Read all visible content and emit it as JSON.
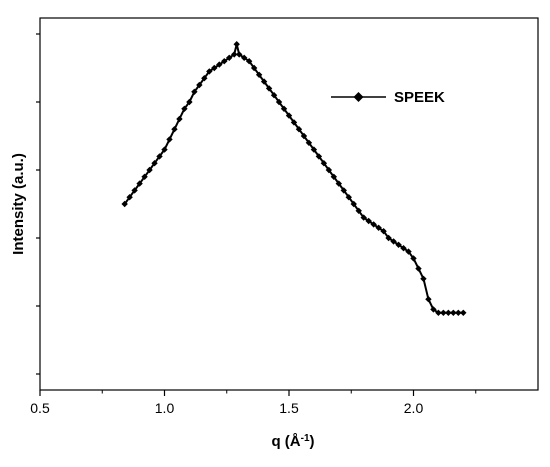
{
  "chart_data": {
    "type": "scatter",
    "xlabel": "q (Å",
    "xlabel_superscript": "-1",
    "xlabel_suffix": ")",
    "ylabel": "Intensity (a.u.)",
    "xlim": [
      0.5,
      2.5
    ],
    "ylim": [
      0,
      1
    ],
    "x_ticks": [
      0.5,
      1.0,
      1.5,
      2.0
    ],
    "x_tick_labels": [
      "0.5",
      "1.0",
      "1.5",
      "2.0"
    ],
    "y_ticks": [
      0.0,
      0.2,
      0.4,
      0.6,
      0.8,
      1.0
    ],
    "grid": false,
    "legend_position": "top-right",
    "series": [
      {
        "name": "SPEEK",
        "color": "#000000",
        "marker": "diamond",
        "x": [
          0.84,
          0.86,
          0.88,
          0.9,
          0.92,
          0.94,
          0.96,
          0.98,
          1.0,
          1.02,
          1.04,
          1.06,
          1.08,
          1.1,
          1.12,
          1.14,
          1.16,
          1.18,
          1.2,
          1.22,
          1.24,
          1.26,
          1.28,
          1.29,
          1.3,
          1.32,
          1.34,
          1.36,
          1.38,
          1.4,
          1.42,
          1.44,
          1.46,
          1.48,
          1.5,
          1.52,
          1.54,
          1.56,
          1.58,
          1.6,
          1.62,
          1.64,
          1.66,
          1.68,
          1.7,
          1.72,
          1.74,
          1.76,
          1.78,
          1.8,
          1.82,
          1.84,
          1.86,
          1.88,
          1.9,
          1.92,
          1.94,
          1.96,
          1.98,
          2.0,
          2.02,
          2.04,
          2.06,
          2.08,
          2.1,
          2.12,
          2.14,
          2.16,
          2.18,
          2.2
        ],
        "y": [
          0.5,
          0.52,
          0.54,
          0.56,
          0.58,
          0.6,
          0.62,
          0.64,
          0.66,
          0.69,
          0.72,
          0.75,
          0.78,
          0.8,
          0.83,
          0.85,
          0.87,
          0.89,
          0.9,
          0.91,
          0.92,
          0.93,
          0.94,
          0.97,
          0.94,
          0.93,
          0.92,
          0.9,
          0.88,
          0.86,
          0.84,
          0.82,
          0.8,
          0.78,
          0.76,
          0.74,
          0.72,
          0.7,
          0.68,
          0.66,
          0.64,
          0.62,
          0.6,
          0.58,
          0.56,
          0.54,
          0.52,
          0.5,
          0.48,
          0.46,
          0.45,
          0.44,
          0.43,
          0.42,
          0.4,
          0.39,
          0.38,
          0.37,
          0.36,
          0.34,
          0.31,
          0.28,
          0.22,
          0.19,
          0.18,
          0.18,
          0.18,
          0.18,
          0.18,
          0.18
        ]
      }
    ]
  }
}
